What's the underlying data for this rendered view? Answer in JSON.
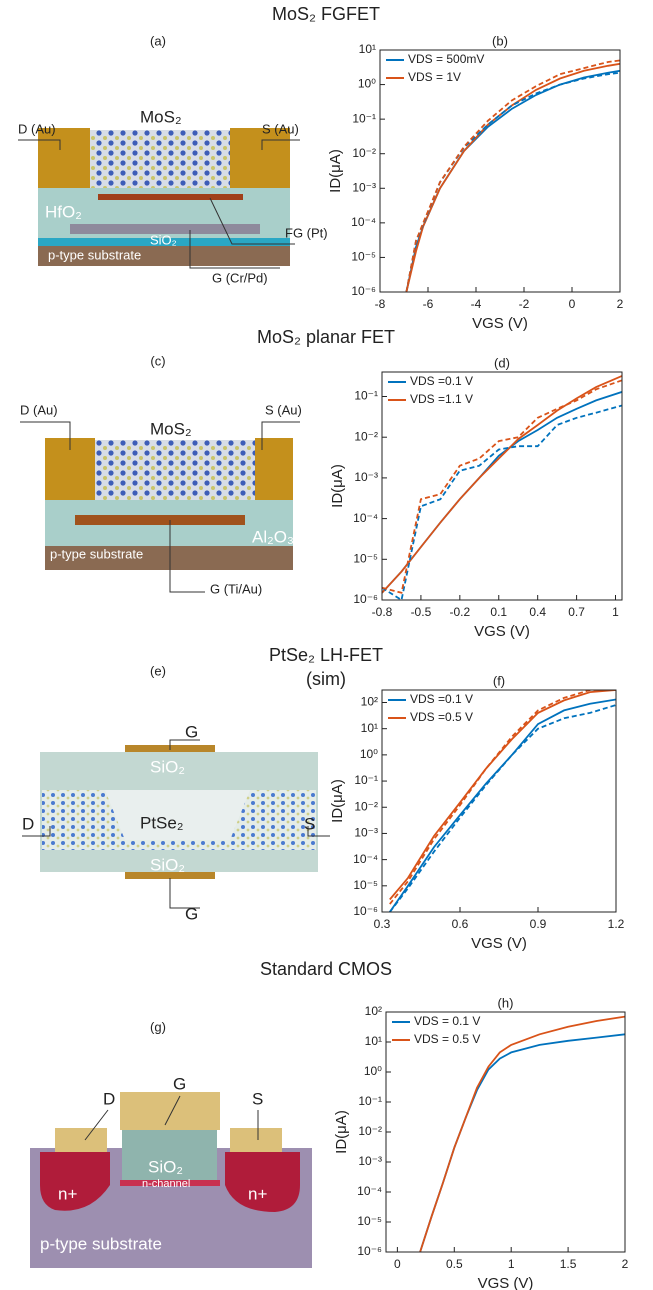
{
  "sections": [
    {
      "title": "MoS₂ FGFET",
      "panel_label": "(a)",
      "labels": [
        "D (Au)",
        "S (Au)",
        "MoS₂",
        "HfO₂",
        "SiO₂",
        "p-type substrate",
        "FG (Pt)",
        "G (Cr/Pd)"
      ]
    },
    {
      "title": "MoS₂ planar FET",
      "panel_label": "(c)",
      "labels": [
        "D (Au)",
        "S (Au)",
        "MoS₂",
        "Al₂O₃",
        "p-type substrate",
        "G (Ti/Au)"
      ]
    },
    {
      "title": "PtSe₂ LH-FET",
      "subtitle": "(sim)",
      "panel_label": "(e)",
      "labels": [
        "G",
        "SiO₂",
        "D",
        "PtSe₂",
        "S",
        "SiO₂",
        "G"
      ]
    },
    {
      "title": "Standard CMOS",
      "panel_label": "(g)",
      "labels": [
        "D",
        "G",
        "S",
        "SiO₂",
        "n-channel",
        "n+",
        "n+",
        "p-type substrate"
      ]
    }
  ],
  "chart_data": [
    {
      "type": "line",
      "title": "(b)",
      "xlabel": "VGS (V)",
      "ylabel": "ID(μA)",
      "log_y": true,
      "x": [
        -6.9,
        -6.5,
        -6.2,
        -5.5,
        -4.5,
        -3.5,
        -2.5,
        -1.5,
        -0.5,
        0.5,
        1.5,
        2
      ],
      "series": [
        {
          "name": "VDS = 500mV",
          "color": "#0072bd",
          "values": [
            1e-06,
            2e-05,
            8e-05,
            0.001,
            0.012,
            0.06,
            0.2,
            0.5,
            1,
            1.6,
            2.2,
            2.5
          ]
        },
        {
          "name": "VDS = 1V",
          "color": "#d95319",
          "values": [
            1e-06,
            1.5e-05,
            8e-05,
            0.001,
            0.012,
            0.07,
            0.25,
            0.7,
            1.5,
            2.5,
            3.5,
            4
          ]
        },
        {
          "color": "#0072bd",
          "dash": true,
          "values": [
            1e-06,
            3e-05,
            9e-05,
            0.0015,
            0.015,
            0.07,
            0.25,
            0.55,
            1,
            1.5,
            2,
            2.2
          ]
        },
        {
          "color": "#d95319",
          "dash": true,
          "values": [
            1e-06,
            3e-05,
            0.0001,
            0.0015,
            0.016,
            0.09,
            0.35,
            0.9,
            2,
            3,
            4.5,
            5
          ]
        }
      ],
      "xlim": [
        -8,
        2
      ],
      "xticks": [
        -8,
        -6,
        -4,
        -2,
        0,
        2
      ],
      "ylim": [
        1e-06,
        10
      ],
      "yticks": [
        {
          "value": 1e-06,
          "label": "10⁻⁶"
        },
        {
          "value": 1e-05,
          "label": "10⁻⁵"
        },
        {
          "value": 0.0001,
          "label": "10⁻⁴"
        },
        {
          "value": 0.001,
          "label": "10⁻³"
        },
        {
          "value": 0.01,
          "label": "10⁻²"
        },
        {
          "value": 0.1,
          "label": "10⁻¹"
        },
        {
          "value": 1,
          "label": "10⁰"
        },
        {
          "value": 10,
          "label": "10¹"
        }
      ]
    },
    {
      "type": "line",
      "title": "(d)",
      "xlabel": "VGS (V)",
      "ylabel": "ID(μA)",
      "log_y": true,
      "x": [
        -0.8,
        -0.65,
        -0.5,
        -0.35,
        -0.2,
        -0.05,
        0.1,
        0.25,
        0.4,
        0.55,
        0.7,
        0.85,
        1.05
      ],
      "series": [
        {
          "name": "VDS =0.1 V",
          "color": "#0072bd",
          "values": [
            1.5e-06,
            5e-06,
            2e-05,
            8e-05,
            0.0003,
            0.001,
            0.0035,
            0.008,
            0.015,
            0.03,
            0.05,
            0.08,
            0.13
          ]
        },
        {
          "name": "VDS =1.1 V",
          "color": "#d95319",
          "values": [
            1.5e-06,
            5e-06,
            2e-05,
            8e-05,
            0.0003,
            0.001,
            0.003,
            0.009,
            0.02,
            0.045,
            0.09,
            0.17,
            0.32
          ]
        },
        {
          "color": "#0072bd",
          "dash": true,
          "values": [
            2e-06,
            1e-06,
            0.0002,
            0.0003,
            0.0015,
            0.002,
            0.005,
            0.006,
            0.006,
            0.02,
            0.03,
            0.04,
            0.06
          ]
        },
        {
          "color": "#d95319",
          "dash": true,
          "values": [
            2e-06,
            1.5e-06,
            0.0003,
            0.0004,
            0.002,
            0.003,
            0.008,
            0.01,
            0.03,
            0.05,
            0.08,
            0.15,
            0.25
          ]
        }
      ],
      "xlim": [
        -0.8,
        1.05
      ],
      "xticks": [
        -0.8,
        -0.5,
        -0.2,
        0.1,
        0.4,
        0.7,
        1
      ],
      "ylim": [
        1e-06,
        0.4
      ],
      "yticks": [
        {
          "value": 1e-06,
          "label": "10⁻⁶"
        },
        {
          "value": 1e-05,
          "label": "10⁻⁵"
        },
        {
          "value": 0.0001,
          "label": "10⁻⁴"
        },
        {
          "value": 0.001,
          "label": "10⁻³"
        },
        {
          "value": 0.01,
          "label": "10⁻²"
        },
        {
          "value": 0.1,
          "label": "10⁻¹"
        }
      ]
    },
    {
      "type": "line",
      "title": "(f)",
      "xlabel": "VGS (V)",
      "ylabel": "ID(μA)",
      "log_y": true,
      "x": [
        0.33,
        0.4,
        0.5,
        0.6,
        0.7,
        0.8,
        0.9,
        1.0,
        1.1,
        1.2
      ],
      "series": [
        {
          "name": "VDS =0.1 V",
          "color": "#0072bd",
          "values": [
            1e-06,
            1e-05,
            0.0003,
            0.005,
            0.08,
            1,
            15,
            50,
            90,
            130
          ]
        },
        {
          "name": "VDS =0.5 V",
          "color": "#d95319",
          "values": [
            3e-06,
            2e-05,
            0.0008,
            0.015,
            0.3,
            4,
            40,
            120,
            250,
            300
          ]
        },
        {
          "color": "#0072bd",
          "dash": true,
          "values": [
            1e-06,
            8e-06,
            0.0002,
            0.004,
            0.07,
            1,
            10,
            25,
            40,
            80
          ]
        },
        {
          "color": "#d95319",
          "dash": true,
          "values": [
            2e-06,
            1.5e-05,
            0.0006,
            0.012,
            0.3,
            5,
            50,
            150,
            300,
            300
          ]
        }
      ],
      "xlim": [
        0.3,
        1.2
      ],
      "xticks": [
        0.3,
        0.6,
        0.9,
        1.2
      ],
      "ylim": [
        1e-06,
        300
      ],
      "yticks": [
        {
          "value": 1e-06,
          "label": "10⁻⁶"
        },
        {
          "value": 1e-05,
          "label": "10⁻⁵"
        },
        {
          "value": 0.0001,
          "label": "10⁻⁴"
        },
        {
          "value": 0.001,
          "label": "10⁻³"
        },
        {
          "value": 0.01,
          "label": "10⁻²"
        },
        {
          "value": 0.1,
          "label": "10⁻¹"
        },
        {
          "value": 1,
          "label": "10⁰"
        },
        {
          "value": 10,
          "label": "10¹"
        },
        {
          "value": 100,
          "label": "10²"
        }
      ]
    },
    {
      "type": "line",
      "title": "(h)",
      "xlabel": "VGS (V)",
      "ylabel": "ID(μA)",
      "log_y": true,
      "x": [
        0.2,
        0.3,
        0.4,
        0.5,
        0.6,
        0.7,
        0.8,
        0.9,
        1.0,
        1.25,
        1.5,
        1.75,
        2
      ],
      "series": [
        {
          "name": "VDS = 0.1 V",
          "color": "#0072bd",
          "values": [
            1e-06,
            1.5e-05,
            0.0002,
            0.003,
            0.03,
            0.25,
            1.2,
            2.8,
            4.5,
            8,
            11,
            14,
            18
          ]
        },
        {
          "name": "VDS = 0.5 V",
          "color": "#d95319",
          "values": [
            1e-06,
            1.5e-05,
            0.0002,
            0.003,
            0.03,
            0.3,
            1.5,
            4.5,
            8,
            18,
            32,
            50,
            70
          ]
        }
      ],
      "xlim": [
        -0.1,
        2
      ],
      "xticks": [
        0,
        0.5,
        1,
        1.5,
        2
      ],
      "ylim": [
        1e-06,
        100
      ],
      "yticks": [
        {
          "value": 1e-06,
          "label": "10⁻⁶"
        },
        {
          "value": 1e-05,
          "label": "10⁻⁵"
        },
        {
          "value": 0.0001,
          "label": "10⁻⁴"
        },
        {
          "value": 0.001,
          "label": "10⁻³"
        },
        {
          "value": 0.01,
          "label": "10⁻²"
        },
        {
          "value": 0.1,
          "label": "10⁻¹"
        },
        {
          "value": 1,
          "label": "10⁰"
        },
        {
          "value": 10,
          "label": "10¹"
        },
        {
          "value": 100,
          "label": "10²"
        }
      ]
    }
  ]
}
